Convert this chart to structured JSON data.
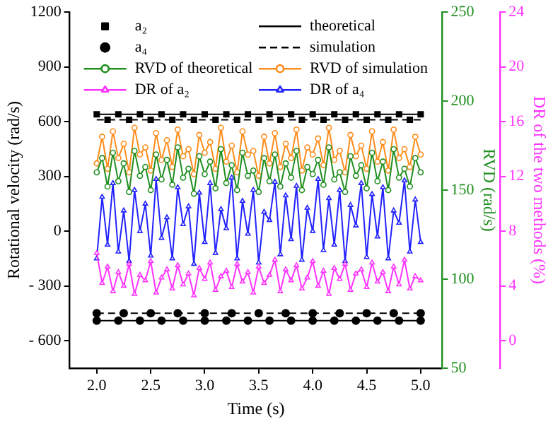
{
  "chart_data": {
    "type": "line",
    "xlabel": "Time (s)",
    "ylabel": "Rotational velocity (rad/s)",
    "y2label": "RVD (rad/s)",
    "y3label": "DR of the two methods (%)",
    "x": [
      2,
      2.05,
      2.1,
      2.15,
      2.2,
      2.25,
      2.3,
      2.35,
      2.4,
      2.45,
      2.5,
      2.55,
      2.6,
      2.65,
      2.7,
      2.75,
      2.8,
      2.85,
      2.9,
      2.95,
      3,
      3.05,
      3.1,
      3.15,
      3.2,
      3.25,
      3.3,
      3.35,
      3.4,
      3.45,
      3.5,
      3.55,
      3.6,
      3.65,
      3.7,
      3.75,
      3.8,
      3.85,
      3.9,
      3.95,
      4,
      4.05,
      4.1,
      4.15,
      4.2,
      4.25,
      4.3,
      4.35,
      4.4,
      4.45,
      4.5,
      4.55,
      4.6,
      4.65,
      4.7,
      4.75,
      4.8,
      4.85,
      4.9,
      4.95,
      5
    ],
    "xlim": [
      1.75,
      5.2
    ],
    "xticks": [
      {
        "value": 2,
        "label": "2.0"
      },
      {
        "value": 2.5,
        "label": "2.5"
      },
      {
        "value": 3,
        "label": "3.0"
      },
      {
        "value": 3.5,
        "label": "3.5"
      },
      {
        "value": 4,
        "label": "4.0"
      },
      {
        "value": 4.5,
        "label": "4.5"
      },
      {
        "value": 5,
        "label": "5.0"
      }
    ],
    "ylim": [
      -750,
      1200
    ],
    "yticks": [
      {
        "value": -600,
        "label": "- 600"
      },
      {
        "value": -300,
        "label": "- 300"
      },
      0,
      300,
      600,
      900,
      1200
    ],
    "y2lim": [
      50,
      250
    ],
    "y2ticks": [
      50,
      100,
      150,
      200,
      250
    ],
    "y3lim": [
      -2,
      24
    ],
    "y3ticks": [
      0,
      4,
      8,
      12,
      16,
      20,
      24
    ],
    "legend": "top",
    "series": [
      {
        "name": "a₂",
        "type": "scatter",
        "marker": "square",
        "color": "#000000",
        "x": [
          2,
          2.2,
          2.4,
          2.6,
          2.8,
          3,
          3.2,
          3.4,
          3.6,
          3.8,
          4,
          4.2,
          4.4,
          4.6,
          4.8,
          5,
          2.1,
          2.3,
          2.5,
          2.7,
          2.9,
          3.1,
          3.3,
          3.5,
          3.7,
          3.9,
          4.1,
          4.3,
          4.5,
          4.7,
          4.9
        ],
        "values": [
          640,
          640,
          640,
          640,
          640,
          640,
          640,
          640,
          640,
          640,
          640,
          640,
          640,
          640,
          640,
          640,
          610,
          610,
          610,
          610,
          610,
          610,
          610,
          610,
          610,
          610,
          610,
          610,
          610,
          610,
          610
        ]
      },
      {
        "name": "theoretical",
        "marker": "none",
        "line_style": "solid",
        "color": "#000000",
        "x": [
          2,
          5
        ],
        "values": [
          640,
          640
        ]
      },
      {
        "name": "a₄",
        "type": "scatter",
        "marker": "circle",
        "color": "#000000",
        "x": [
          2,
          2.2,
          2.4,
          2.6,
          2.8,
          3,
          3.2,
          3.4,
          3.6,
          3.8,
          4,
          4.2,
          4.4,
          4.6,
          4.8,
          5,
          2,
          2.25,
          2.5,
          2.75,
          3,
          3.25,
          3.5,
          3.75,
          4,
          4.25,
          4.5,
          4.75,
          5
        ],
        "values": [
          -490,
          -490,
          -490,
          -490,
          -490,
          -490,
          -490,
          -490,
          -490,
          -490,
          -490,
          -490,
          -490,
          -490,
          -490,
          -490,
          -450,
          -450,
          -450,
          -450,
          -450,
          -450,
          -450,
          -450,
          -450,
          -450,
          -450,
          -450,
          -450
        ]
      },
      {
        "name": "simulation",
        "marker": "none",
        "line_style": "dashed",
        "color": "#000000",
        "x": [
          2,
          5
        ],
        "values": [
          610,
          610
        ]
      },
      {
        "name": "RVD of theoretical",
        "marker": "circle",
        "line_style": "solid",
        "axis": "y2",
        "color": "#1f8f1f",
        "values": [
          160,
          168,
          152,
          171,
          155,
          165,
          149,
          172,
          158,
          163,
          150,
          170,
          156,
          167,
          153,
          174,
          157,
          162,
          148,
          169,
          159,
          166,
          151,
          173,
          154,
          164,
          150,
          171,
          158,
          161,
          149,
          168,
          155,
          170,
          152,
          165,
          157,
          172,
          150,
          163,
          159,
          167,
          153,
          174,
          156,
          160,
          149,
          169,
          158,
          164,
          151,
          171,
          155,
          166,
          150,
          173,
          157,
          162,
          152,
          168,
          160
        ]
      },
      {
        "name": "RVD of simulation",
        "marker": "circle",
        "line_style": "solid",
        "axis": "y2",
        "color": "#ff8c1a",
        "values": [
          165,
          180,
          162,
          183,
          168,
          176,
          160,
          185,
          170,
          174,
          161,
          182,
          167,
          178,
          163,
          184,
          169,
          173,
          159,
          181,
          171,
          177,
          162,
          185,
          166,
          175,
          160,
          183,
          170,
          172,
          158,
          180,
          165,
          182,
          163,
          176,
          168,
          184,
          161,
          174,
          170,
          179,
          164,
          185,
          167,
          172,
          160,
          181,
          169,
          175,
          162,
          183,
          166,
          177,
          161,
          184,
          168,
          173,
          163,
          180,
          170
        ]
      },
      {
        "name": "DR of a₂",
        "marker": "triangle",
        "line_style": "solid",
        "axis": "y3",
        "color": "#ff33ff",
        "values": [
          6.4,
          4.2,
          5.4,
          3.6,
          5,
          4,
          5.6,
          3.4,
          4.8,
          4.4,
          5.8,
          3.5,
          4.6,
          5.2,
          3.8,
          5.5,
          4.1,
          4.9,
          3.3,
          5.3,
          4.5,
          5.7,
          3.7,
          4.7,
          5.1,
          3.9,
          5.6,
          4.3,
          5,
          3.5,
          5.4,
          4.2,
          4.8,
          5.9,
          3.6,
          5.2,
          4.4,
          5.5,
          3.8,
          4.6,
          5.8,
          4,
          5.1,
          3.4,
          5.3,
          4.5,
          5.6,
          3.7,
          4.9,
          5.2,
          3.9,
          5.7,
          4.3,
          5,
          3.6,
          5.4,
          4.1,
          5.9,
          3.8,
          4.7,
          4.4
        ]
      },
      {
        "name": "DR of a₄",
        "marker": "triangle",
        "line_style": "solid",
        "axis": "y3",
        "color": "#2222ff",
        "values": [
          6,
          10.5,
          7,
          11.5,
          6.5,
          9.5,
          5.8,
          11,
          8,
          10,
          6.2,
          11.8,
          7.5,
          9,
          6,
          11.2,
          8.5,
          9.8,
          5.6,
          10.8,
          7.2,
          11.5,
          6.4,
          9.6,
          8.2,
          11.9,
          6,
          10.2,
          7.8,
          11,
          5.7,
          9.4,
          8.8,
          11.6,
          6.3,
          10.6,
          7.4,
          11.3,
          5.9,
          9.7,
          8,
          11.8,
          6.6,
          10.4,
          7,
          11,
          5.8,
          9.9,
          8.4,
          11.5,
          6.1,
          10.7,
          7.6,
          11.2,
          6,
          9.5,
          8.6,
          11.7,
          6.5,
          10.3,
          7.2
        ]
      },
      {
        "marker": "none",
        "line_style": "solid",
        "color": "#000000",
        "x": [
          2,
          5
        ],
        "values": [
          -490,
          -490
        ]
      },
      {
        "marker": "none",
        "line_style": "dashed",
        "color": "#000000",
        "x": [
          2,
          5
        ],
        "values": [
          -450,
          -450
        ]
      }
    ]
  }
}
